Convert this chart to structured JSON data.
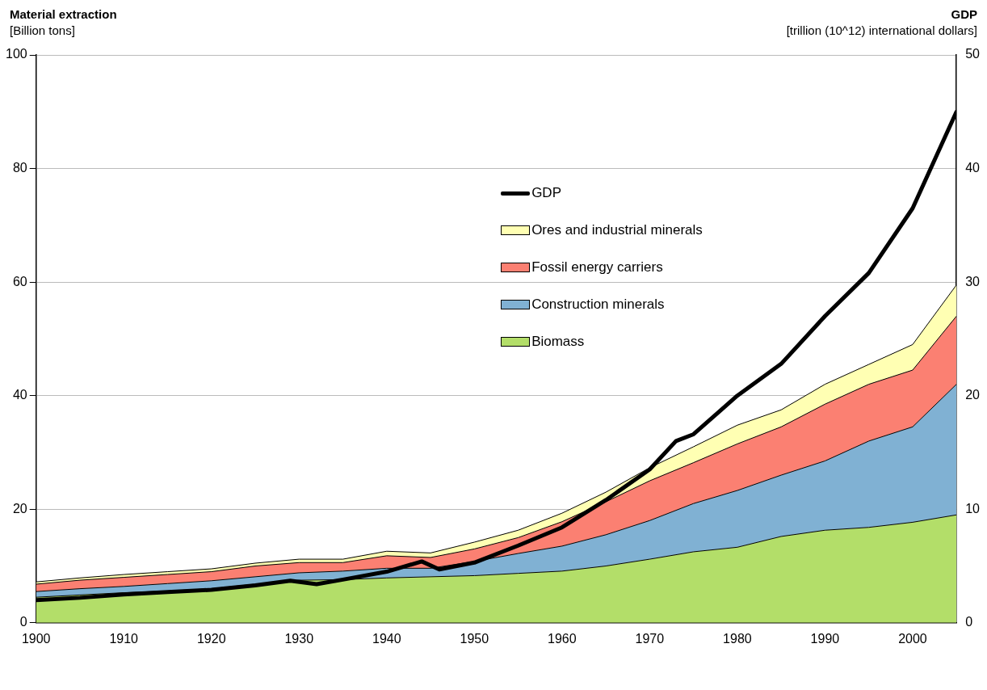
{
  "chart_data": {
    "type": "area",
    "stacked": true,
    "ylabel": "Material extraction\n[Billion tons]",
    "y2label": "GDP\n[trillion (10^12) international dollars]",
    "x": [
      1900,
      1905,
      1910,
      1915,
      1920,
      1925,
      1930,
      1935,
      1940,
      1945,
      1950,
      1955,
      1960,
      1965,
      1970,
      1975,
      1980,
      1985,
      1990,
      1995,
      2000,
      2005
    ],
    "xlim": [
      1900,
      2005
    ],
    "xticks": [
      1900,
      1910,
      1920,
      1930,
      1940,
      1950,
      1960,
      1970,
      1980,
      1990,
      2000
    ],
    "ylim": [
      0,
      100
    ],
    "yticks": [
      0,
      20,
      40,
      60,
      80,
      100
    ],
    "y2lim": [
      0,
      50
    ],
    "y2ticks": [
      0,
      10,
      20,
      30,
      40,
      50
    ],
    "grid": "y",
    "legend": "top",
    "series": [
      {
        "name": "Biomass",
        "color": "#b3de69",
        "values": [
          4.5,
          4.9,
          5.3,
          5.6,
          6.0,
          6.8,
          7.5,
          7.6,
          7.9,
          8.1,
          8.3,
          8.7,
          9.1,
          10.0,
          11.2,
          12.5,
          13.3,
          15.2,
          16.3,
          16.8,
          17.7,
          19.0
        ]
      },
      {
        "name": "Construction minerals",
        "color": "#80b1d3",
        "values": [
          1.0,
          1.1,
          1.1,
          1.3,
          1.4,
          1.3,
          1.3,
          1.5,
          1.7,
          1.5,
          2.5,
          3.5,
          4.4,
          5.5,
          6.8,
          8.5,
          10.0,
          10.8,
          12.2,
          15.2,
          16.8,
          23.0
        ]
      },
      {
        "name": "Fossil energy carriers",
        "color": "#fb8072",
        "values": [
          1.3,
          1.5,
          1.6,
          1.6,
          1.6,
          1.9,
          1.8,
          1.5,
          2.2,
          1.9,
          2.2,
          2.8,
          4.3,
          5.8,
          7.0,
          7.2,
          8.2,
          8.5,
          10.0,
          10.0,
          10.0,
          12.0
        ]
      },
      {
        "name": "Ores and industrial minerals",
        "color": "#ffffb3",
        "values": [
          0.4,
          0.4,
          0.5,
          0.5,
          0.5,
          0.5,
          0.6,
          0.6,
          0.8,
          0.8,
          1.2,
          1.3,
          1.5,
          1.7,
          2.3,
          2.8,
          3.3,
          3.0,
          3.5,
          3.5,
          4.5,
          5.5
        ]
      },
      {
        "name": "GDP",
        "type": "line",
        "axis": "y2",
        "color": "#000000",
        "x": [
          1900,
          1905,
          1910,
          1915,
          1920,
          1925,
          1929,
          1932,
          1935,
          1940,
          1944,
          1946,
          1950,
          1955,
          1960,
          1965,
          1970,
          1973,
          1975,
          1980,
          1985,
          1990,
          1995,
          2000,
          2005
        ],
        "values": [
          2.0,
          2.2,
          2.5,
          2.7,
          2.9,
          3.3,
          3.7,
          3.4,
          3.8,
          4.5,
          5.4,
          4.7,
          5.3,
          6.8,
          8.4,
          10.8,
          13.5,
          16.0,
          16.6,
          20.0,
          22.8,
          27.0,
          30.8,
          36.5,
          45.0
        ]
      }
    ]
  }
}
